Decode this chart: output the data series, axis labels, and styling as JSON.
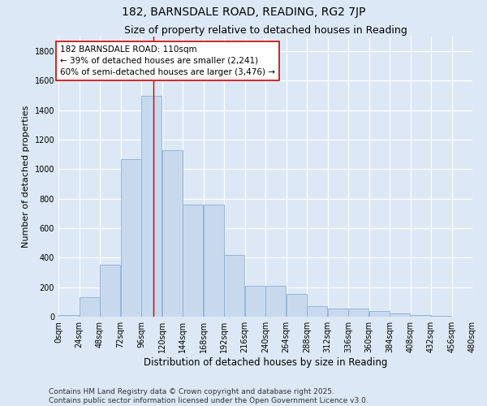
{
  "title": "182, BARNSDALE ROAD, READING, RG2 7JP",
  "subtitle": "Size of property relative to detached houses in Reading",
  "xlabel": "Distribution of detached houses by size in Reading",
  "ylabel": "Number of detached properties",
  "bar_color": "#c8d9ee",
  "bar_edge_color": "#8ab0d4",
  "background_color": "#dce8f5",
  "annotation_box_color": "#ffffff",
  "annotation_box_edge": "#cc0000",
  "vline_color": "#cc0000",
  "property_size": 110,
  "annotation_text": "182 BARNSDALE ROAD: 110sqm\n← 39% of detached houses are smaller (2,241)\n60% of semi-detached houses are larger (3,476) →",
  "bin_starts": [
    0,
    24,
    48,
    72,
    96,
    120,
    144,
    168,
    192,
    216,
    240,
    264,
    288,
    312,
    336,
    360,
    384,
    408,
    432,
    456
  ],
  "bin_width": 24,
  "bar_heights": [
    10,
    130,
    350,
    1070,
    1500,
    1130,
    760,
    760,
    420,
    210,
    210,
    155,
    70,
    55,
    55,
    40,
    20,
    10,
    5,
    2
  ],
  "ylim": [
    0,
    1900
  ],
  "yticks": [
    0,
    200,
    400,
    600,
    800,
    1000,
    1200,
    1400,
    1600,
    1800
  ],
  "xtick_labels": [
    "0sqm",
    "24sqm",
    "48sqm",
    "72sqm",
    "96sqm",
    "120sqm",
    "144sqm",
    "168sqm",
    "192sqm",
    "216sqm",
    "240sqm",
    "264sqm",
    "288sqm",
    "312sqm",
    "336sqm",
    "360sqm",
    "384sqm",
    "408sqm",
    "432sqm",
    "456sqm",
    "480sqm"
  ],
  "footnote": "Contains HM Land Registry data © Crown copyright and database right 2025.\nContains public sector information licensed under the Open Government Licence v3.0.",
  "title_fontsize": 10,
  "subtitle_fontsize": 9,
  "xlabel_fontsize": 8.5,
  "ylabel_fontsize": 8,
  "tick_fontsize": 7,
  "annotation_fontsize": 7.5,
  "footnote_fontsize": 6.5
}
